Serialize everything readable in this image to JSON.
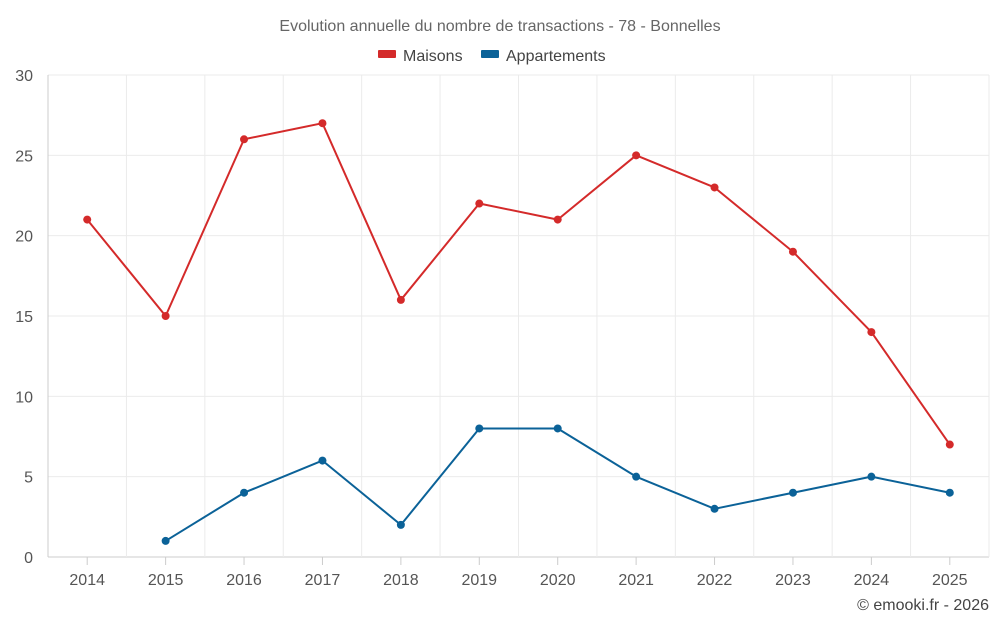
{
  "chart_data": {
    "type": "line",
    "title": "Evolution annuelle du nombre de transactions - 78 - Bonnelles",
    "categories": [
      "2014",
      "2015",
      "2016",
      "2017",
      "2018",
      "2019",
      "2020",
      "2021",
      "2022",
      "2023",
      "2024",
      "2025"
    ],
    "series": [
      {
        "name": "Maisons",
        "color": "#d42a2a",
        "values": [
          21,
          15,
          26,
          27,
          16,
          22,
          21,
          25,
          23,
          19,
          14,
          7
        ]
      },
      {
        "name": "Appartements",
        "color": "#0b6298",
        "values": [
          null,
          1,
          4,
          6,
          2,
          8,
          8,
          5,
          3,
          4,
          5,
          4
        ]
      }
    ],
    "ylim": [
      0,
      30
    ],
    "yticks": [
      0,
      5,
      10,
      15,
      20,
      25,
      30
    ],
    "grid": true,
    "legend": "top-center",
    "xlabel": "",
    "ylabel": ""
  },
  "credit": "© emooki.fr - 2026"
}
